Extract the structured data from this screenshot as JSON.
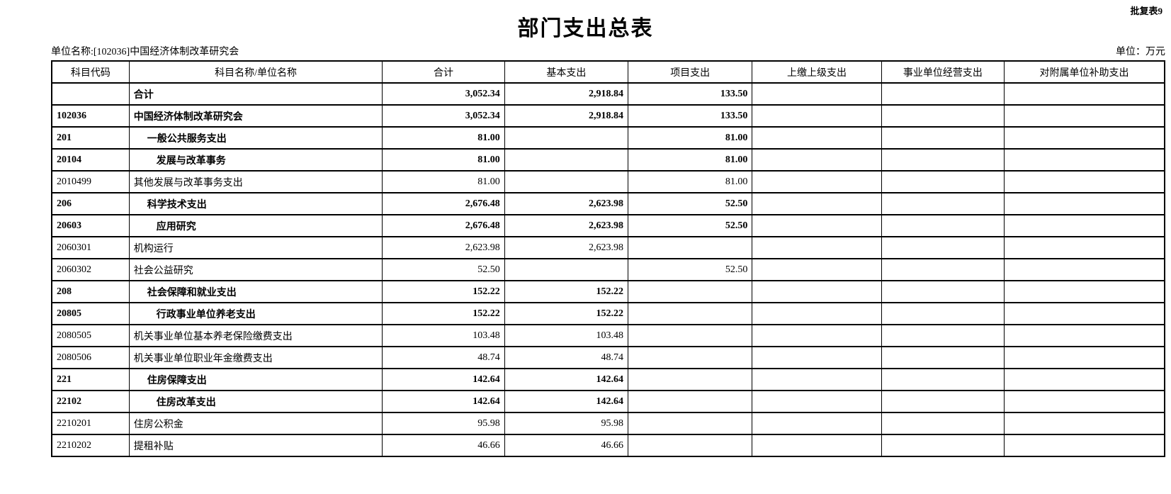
{
  "page": {
    "form_label": "批复表9",
    "title": "部门支出总表",
    "unit_name": "单位名称:[102036]中国经济体制改革研究会",
    "unit": "单位：万元"
  },
  "table": {
    "columns": [
      "科目代码",
      "科目名称/单位名称",
      "合计",
      "基本支出",
      "项目支出",
      "上缴上级支出",
      "事业单位经营支出",
      "对附属单位补助支出"
    ],
    "rows": [
      {
        "code": "",
        "name": "合计",
        "total": "3,052.34",
        "basic": "2,918.84",
        "project": "133.50",
        "upper": "",
        "operating": "",
        "subsidy": "",
        "bold": true,
        "indent": 0
      },
      {
        "code": "102036",
        "name": "中国经济体制改革研究会",
        "total": "3,052.34",
        "basic": "2,918.84",
        "project": "133.50",
        "upper": "",
        "operating": "",
        "subsidy": "",
        "bold": true,
        "indent": 0
      },
      {
        "code": "201",
        "name": "一般公共服务支出",
        "total": "81.00",
        "basic": "",
        "project": "81.00",
        "upper": "",
        "operating": "",
        "subsidy": "",
        "bold": true,
        "indent": 1
      },
      {
        "code": "20104",
        "name": "发展与改革事务",
        "total": "81.00",
        "basic": "",
        "project": "81.00",
        "upper": "",
        "operating": "",
        "subsidy": "",
        "bold": true,
        "indent": 2
      },
      {
        "code": "2010499",
        "name": "其他发展与改革事务支出",
        "total": "81.00",
        "basic": "",
        "project": "81.00",
        "upper": "",
        "operating": "",
        "subsidy": "",
        "bold": false,
        "indent": 0
      },
      {
        "code": "206",
        "name": "科学技术支出",
        "total": "2,676.48",
        "basic": "2,623.98",
        "project": "52.50",
        "upper": "",
        "operating": "",
        "subsidy": "",
        "bold": true,
        "indent": 1
      },
      {
        "code": "20603",
        "name": "应用研究",
        "total": "2,676.48",
        "basic": "2,623.98",
        "project": "52.50",
        "upper": "",
        "operating": "",
        "subsidy": "",
        "bold": true,
        "indent": 2
      },
      {
        "code": "2060301",
        "name": "机构运行",
        "total": "2,623.98",
        "basic": "2,623.98",
        "project": "",
        "upper": "",
        "operating": "",
        "subsidy": "",
        "bold": false,
        "indent": 0
      },
      {
        "code": "2060302",
        "name": "社会公益研究",
        "total": "52.50",
        "basic": "",
        "project": "52.50",
        "upper": "",
        "operating": "",
        "subsidy": "",
        "bold": false,
        "indent": 0
      },
      {
        "code": "208",
        "name": "社会保障和就业支出",
        "total": "152.22",
        "basic": "152.22",
        "project": "",
        "upper": "",
        "operating": "",
        "subsidy": "",
        "bold": true,
        "indent": 1
      },
      {
        "code": "20805",
        "name": "行政事业单位养老支出",
        "total": "152.22",
        "basic": "152.22",
        "project": "",
        "upper": "",
        "operating": "",
        "subsidy": "",
        "bold": true,
        "indent": 2
      },
      {
        "code": "2080505",
        "name": "机关事业单位基本养老保险缴费支出",
        "total": "103.48",
        "basic": "103.48",
        "project": "",
        "upper": "",
        "operating": "",
        "subsidy": "",
        "bold": false,
        "indent": 0
      },
      {
        "code": "2080506",
        "name": "机关事业单位职业年金缴费支出",
        "total": "48.74",
        "basic": "48.74",
        "project": "",
        "upper": "",
        "operating": "",
        "subsidy": "",
        "bold": false,
        "indent": 0
      },
      {
        "code": "221",
        "name": "住房保障支出",
        "total": "142.64",
        "basic": "142.64",
        "project": "",
        "upper": "",
        "operating": "",
        "subsidy": "",
        "bold": true,
        "indent": 1
      },
      {
        "code": "22102",
        "name": "住房改革支出",
        "total": "142.64",
        "basic": "142.64",
        "project": "",
        "upper": "",
        "operating": "",
        "subsidy": "",
        "bold": true,
        "indent": 2
      },
      {
        "code": "2210201",
        "name": "住房公积金",
        "total": "95.98",
        "basic": "95.98",
        "project": "",
        "upper": "",
        "operating": "",
        "subsidy": "",
        "bold": false,
        "indent": 0
      },
      {
        "code": "2210202",
        "name": "提租补贴",
        "total": "46.66",
        "basic": "46.66",
        "project": "",
        "upper": "",
        "operating": "",
        "subsidy": "",
        "bold": false,
        "indent": 0
      }
    ]
  }
}
